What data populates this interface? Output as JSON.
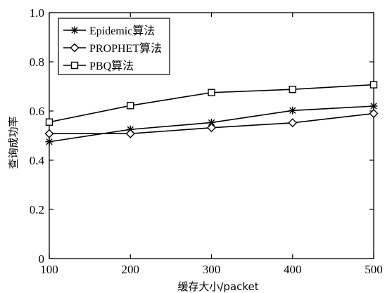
{
  "chart_data": {
    "type": "line",
    "title": "",
    "xlabel": "缓存大小/packet",
    "ylabel": "查询成功率",
    "x": [
      100,
      200,
      300,
      400,
      500
    ],
    "xlim": [
      100,
      500
    ],
    "ylim": [
      0,
      1.0
    ],
    "xticks": [
      "100",
      "200",
      "300",
      "400",
      "500"
    ],
    "yticks": [
      "0",
      "0.2",
      "0.4",
      "0.6",
      "0.8",
      "1.0"
    ],
    "grid": false,
    "legend_position": "top-left",
    "series": [
      {
        "name": "Epidemic算法",
        "marker": "asterisk",
        "color": "#000000",
        "values": [
          0.475,
          0.525,
          0.553,
          0.602,
          0.62
        ]
      },
      {
        "name": "PROPHET算法",
        "marker": "diamond",
        "color": "#000000",
        "values": [
          0.508,
          0.508,
          0.532,
          0.552,
          0.59
        ]
      },
      {
        "name": "PBQ算法",
        "marker": "square",
        "color": "#000000",
        "values": [
          0.555,
          0.622,
          0.675,
          0.688,
          0.707
        ]
      }
    ]
  }
}
